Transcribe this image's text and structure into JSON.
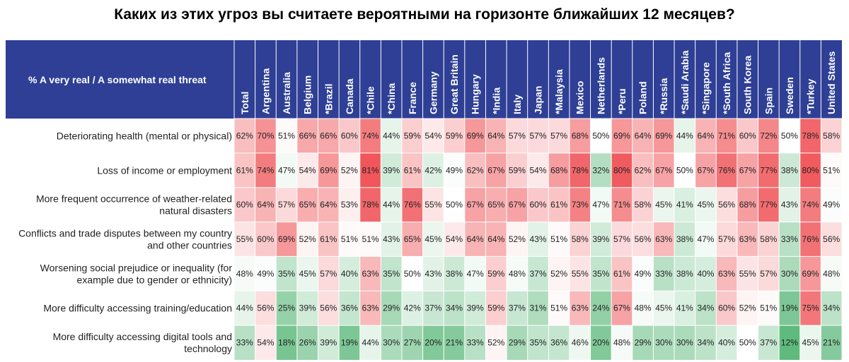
{
  "title": "Каких из этих угроз вы считаете вероятными на горизонте ближайших 12 месяцев?",
  "chart_data": {
    "type": "heatmap",
    "title": "Каких из этих угроз вы считаете вероятными на горизонте ближайших 12 месяцев?",
    "corner_label": "% A very real / A somewhat real threat",
    "value_suffix": "%",
    "color_scale": {
      "low": "#5fba7d",
      "mid": "#ffffff",
      "high": "#f0565a",
      "min": 12,
      "mid_value": 50,
      "max": 81
    },
    "columns": [
      "Total",
      "Argentina",
      "Australia",
      "Belgium",
      "*Brazil",
      "Canada",
      "*Chile",
      "*China",
      "France",
      "Germany",
      "Great Britain",
      "Hungary",
      "*India",
      "Italy",
      "Japan",
      "*Malaysia",
      "Mexico",
      "Netherlands",
      "*Peru",
      "Poland",
      "*Russia",
      "*Saudi Arabia",
      "*Singapore",
      "*South Africa",
      "South Korea",
      "Spain",
      "Sweden",
      "*Turkey",
      "United States"
    ],
    "rows": [
      {
        "label": [
          "Deteriorating health (mental or physical)"
        ],
        "values": [
          62,
          70,
          51,
          66,
          66,
          60,
          74,
          44,
          59,
          54,
          59,
          69,
          64,
          57,
          57,
          57,
          68,
          50,
          69,
          64,
          69,
          44,
          64,
          71,
          60,
          72,
          50,
          78,
          58
        ]
      },
      {
        "label": [
          "Loss of income or employment"
        ],
        "values": [
          61,
          74,
          47,
          54,
          69,
          52,
          81,
          39,
          61,
          42,
          49,
          62,
          67,
          59,
          54,
          68,
          78,
          32,
          80,
          62,
          67,
          50,
          67,
          76,
          67,
          77,
          38,
          80,
          51
        ]
      },
      {
        "label": [
          "More frequent occurrence of weather-related",
          "natural disasters"
        ],
        "values": [
          60,
          64,
          57,
          65,
          64,
          53,
          78,
          44,
          76,
          55,
          50,
          67,
          65,
          67,
          60,
          61,
          73,
          47,
          71,
          58,
          45,
          41,
          45,
          56,
          68,
          77,
          43,
          74,
          49
        ]
      },
      {
        "label": [
          "Conflicts and trade disputes between my country",
          "and other countries"
        ],
        "values": [
          55,
          60,
          69,
          52,
          61,
          51,
          51,
          43,
          65,
          45,
          54,
          64,
          64,
          52,
          43,
          51,
          58,
          39,
          57,
          56,
          63,
          38,
          47,
          57,
          63,
          58,
          33,
          76,
          56
        ]
      },
      {
        "label": [
          "Worsening social prejudice or inequality (for",
          "example due to gender or ethnicity)"
        ],
        "values": [
          48,
          49,
          35,
          45,
          57,
          40,
          63,
          35,
          50,
          43,
          38,
          47,
          59,
          48,
          37,
          52,
          55,
          35,
          61,
          49,
          33,
          38,
          40,
          63,
          55,
          57,
          30,
          69,
          48
        ]
      },
      {
        "label": [
          "More difficulty accessing training/education"
        ],
        "values": [
          44,
          56,
          25,
          39,
          56,
          36,
          63,
          29,
          42,
          37,
          34,
          39,
          59,
          37,
          31,
          51,
          63,
          24,
          67,
          48,
          45,
          41,
          34,
          60,
          52,
          51,
          19,
          75,
          34
        ]
      },
      {
        "label": [
          "More difficulty accessing digital tools and",
          "technology"
        ],
        "values": [
          33,
          54,
          18,
          26,
          39,
          19,
          44,
          30,
          27,
          20,
          21,
          33,
          52,
          29,
          35,
          36,
          46,
          20,
          48,
          29,
          30,
          30,
          34,
          40,
          50,
          37,
          12,
          45,
          21
        ]
      }
    ]
  }
}
